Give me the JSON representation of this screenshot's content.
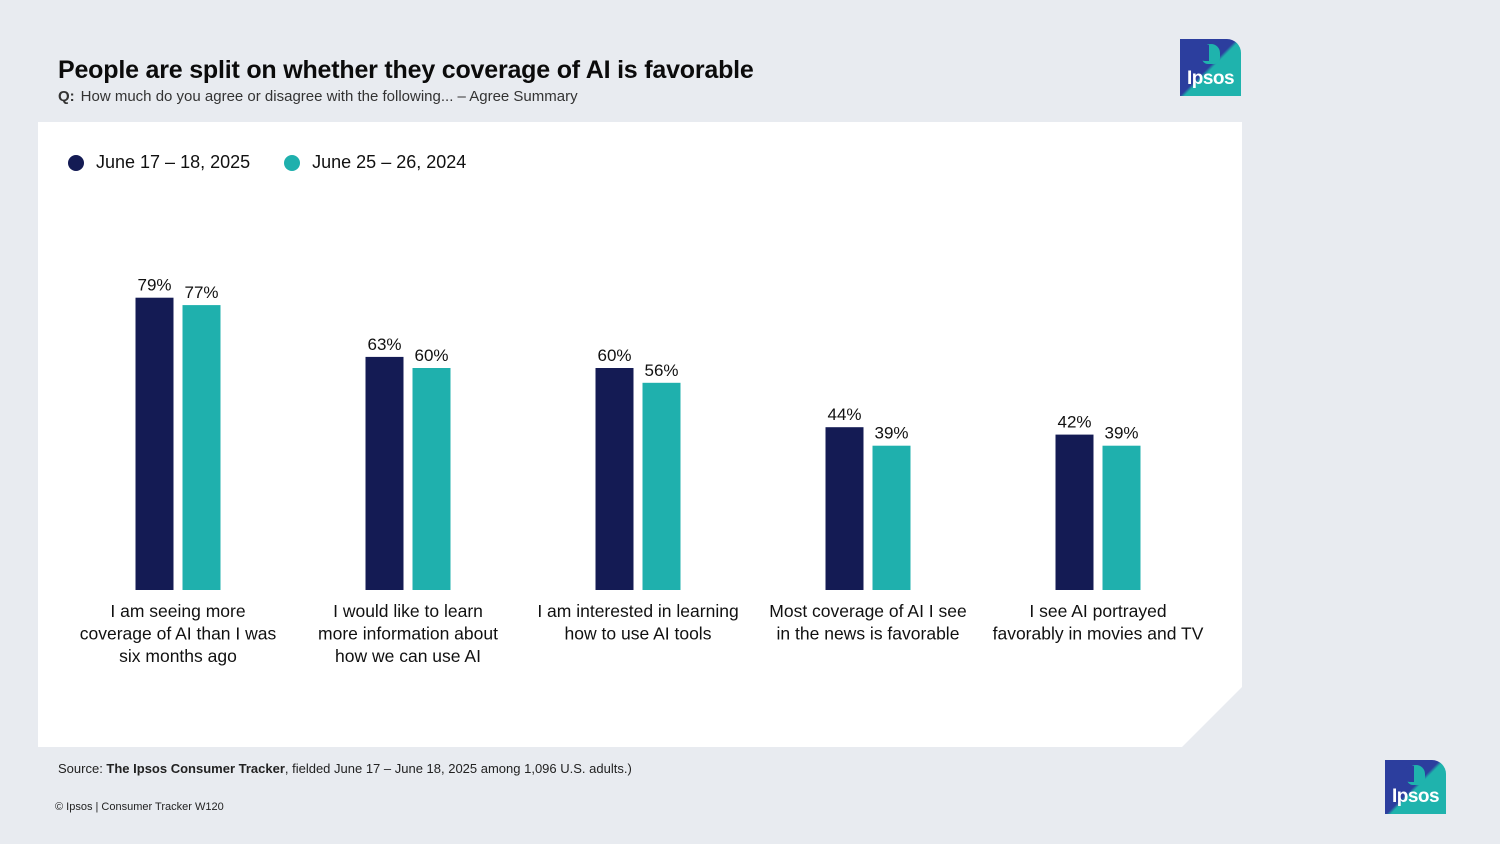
{
  "header": {
    "title": "People are split on whether they coverage of AI is favorable",
    "question_prefix": "Q:",
    "question": "How much do you agree or disagree with the following... – Agree Summary"
  },
  "logo_text": "Ipsos",
  "colors": {
    "series_2025": "#141b54",
    "series_2024": "#1fb0ad",
    "background": "#e8ebf0"
  },
  "chart_data": {
    "type": "bar",
    "categories": [
      "I am seeing more coverage of AI than I was six months ago",
      "I would like to learn more information about how we can use AI",
      "I am interested in learning how to use AI tools",
      "Most coverage of AI I see in the news is favorable",
      "I see AI portrayed favorably in movies and TV"
    ],
    "category_lines": [
      [
        "I am seeing more",
        "coverage of AI than I was",
        "six months ago"
      ],
      [
        "I would like to learn",
        "more information about",
        "how we can use AI"
      ],
      [
        "I am interested in learning",
        "how to use AI tools"
      ],
      [
        "Most coverage of AI I see",
        "in the news is favorable"
      ],
      [
        "I see AI portrayed",
        "favorably in movies and TV"
      ]
    ],
    "series": [
      {
        "name": "June 17 – 18, 2025",
        "values": [
          79,
          63,
          60,
          44,
          42
        ],
        "color": "#141b54"
      },
      {
        "name": "June 25 – 26, 2024",
        "values": [
          77,
          60,
          56,
          39,
          39
        ],
        "color": "#1fb0ad"
      }
    ],
    "value_suffix": "%",
    "ylim": [
      0,
      100
    ],
    "legend_position": "top-left",
    "grid": false
  },
  "footer": {
    "source_prefix": "Source: ",
    "source_bold": "The Ipsos Consumer Tracker",
    "source_rest": ", fielded June 17 – June 18, 2025 among 1,096 U.S. adults.)",
    "copyright": "© Ipsos | Consumer Tracker W120"
  }
}
